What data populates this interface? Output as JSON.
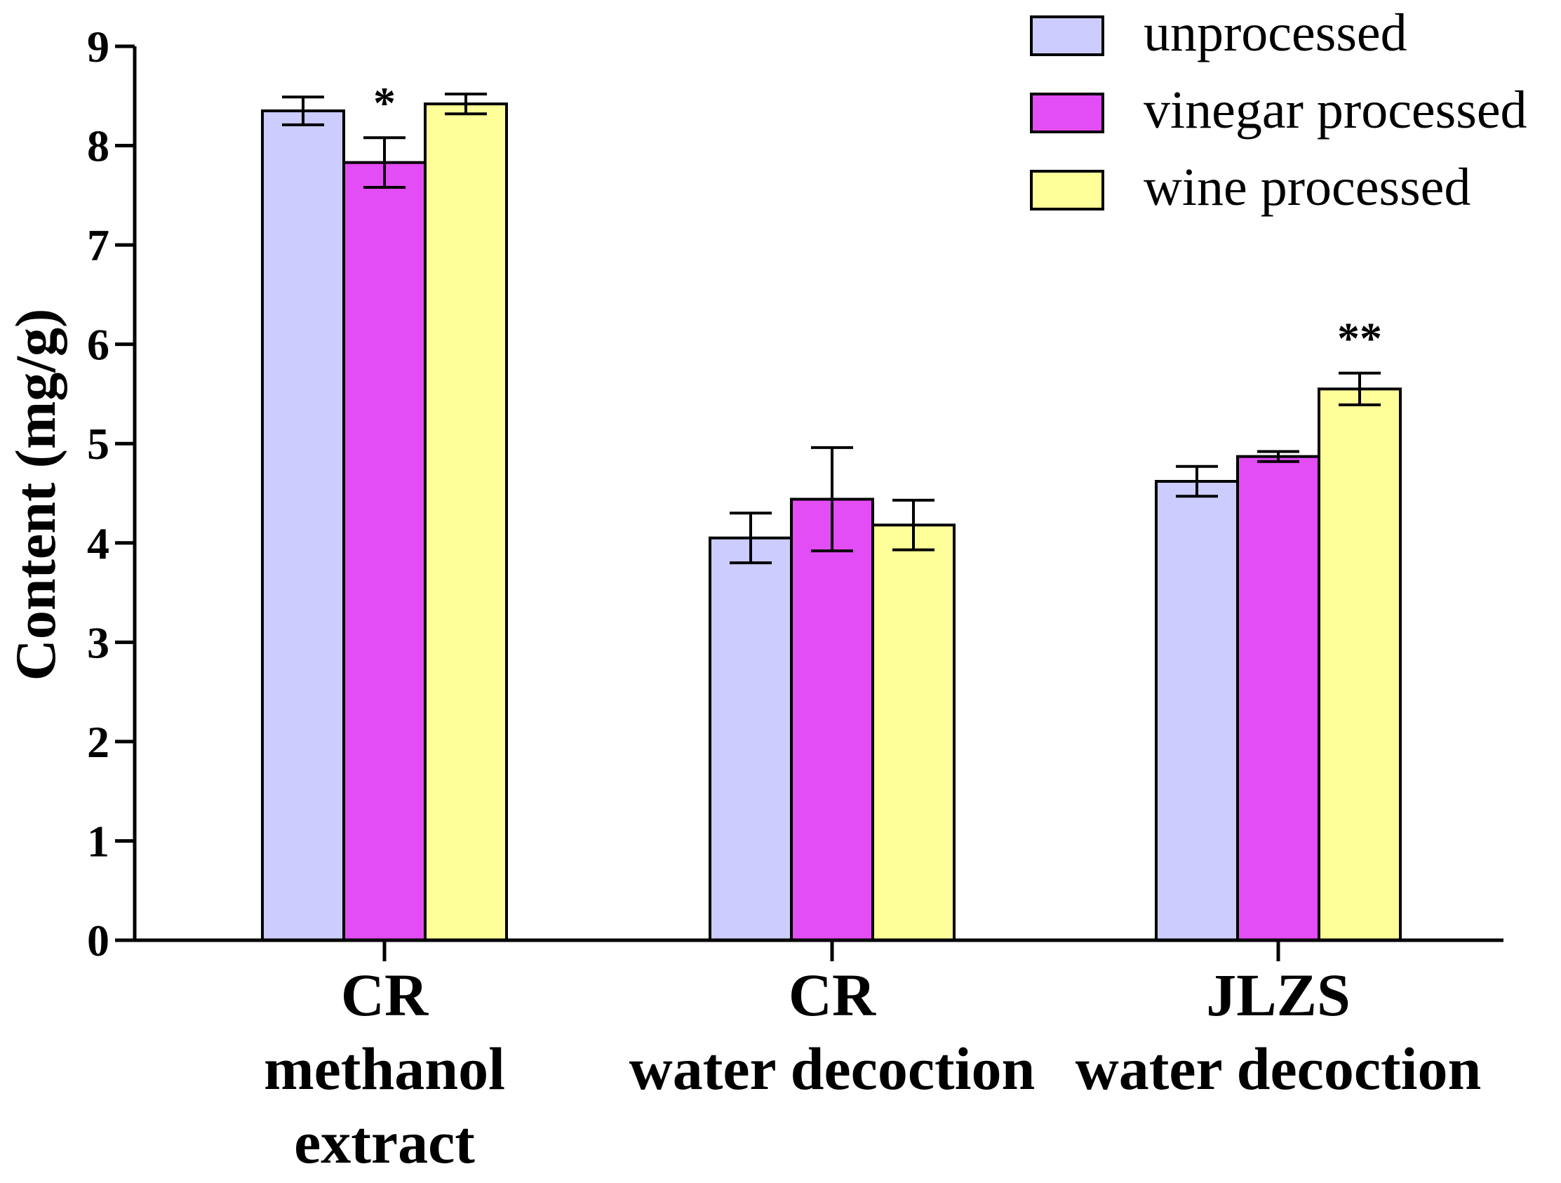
{
  "chart_data": {
    "type": "bar",
    "title": "",
    "xlabel": "",
    "ylabel": "Content (mg/g)",
    "ylim": [
      0,
      9
    ],
    "yticks": [
      "0",
      "1",
      "2",
      "3",
      "4",
      "5",
      "6",
      "7",
      "8",
      "9"
    ],
    "grid": false,
    "legend_position": "top-right",
    "categories": [
      {
        "id": "cr-methanol",
        "lines": [
          "CR",
          "methanol",
          "extract"
        ]
      },
      {
        "id": "cr-water",
        "lines": [
          "CR",
          "water decoction"
        ]
      },
      {
        "id": "jlzs-water",
        "lines": [
          "JLZS",
          "water decoction"
        ]
      }
    ],
    "series": [
      {
        "name": "unprocessed",
        "color": "#ccccff",
        "values": [
          8.35,
          4.05,
          4.62
        ],
        "errors": [
          0.14,
          0.25,
          0.15
        ]
      },
      {
        "name": "vinegar processed",
        "color": "#e34df5",
        "values": [
          7.83,
          4.44,
          4.87
        ],
        "errors": [
          0.25,
          0.52,
          0.05
        ]
      },
      {
        "name": "wine processed",
        "color": "#ffff99",
        "values": [
          8.42,
          4.18,
          5.55
        ],
        "errors": [
          0.1,
          0.25,
          0.16
        ]
      }
    ],
    "annotations": [
      {
        "text": "*",
        "category": 0,
        "series": 1
      },
      {
        "text": "**",
        "category": 2,
        "series": 2
      }
    ]
  }
}
